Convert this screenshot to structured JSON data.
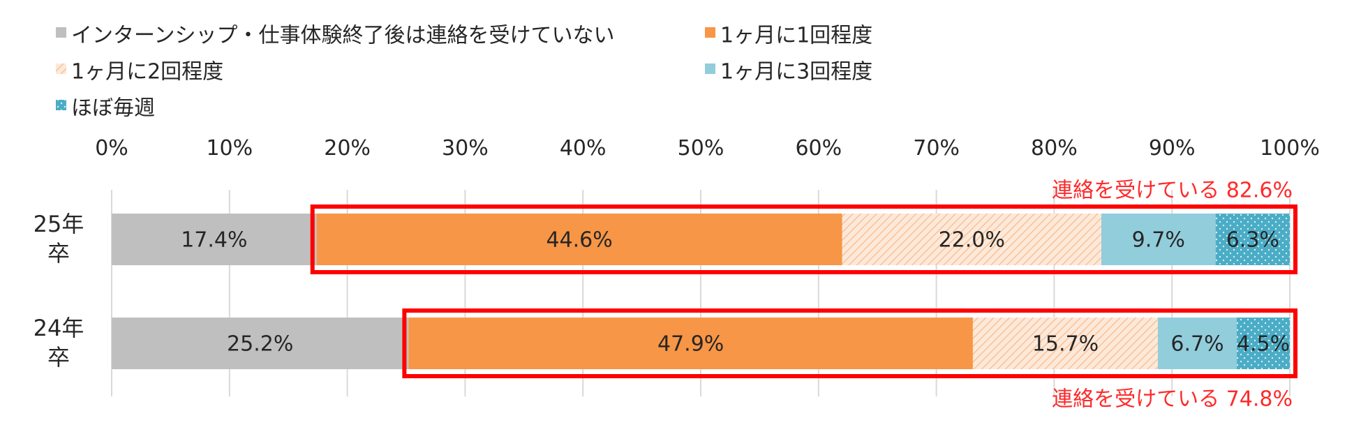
{
  "chart_data": {
    "type": "bar",
    "orientation": "horizontal",
    "stacked": true,
    "categories": [
      {
        "label_line1": "25年",
        "label_line2": "卒"
      },
      {
        "label_line1": "24年",
        "label_line2": "卒"
      }
    ],
    "series": [
      {
        "name": "インターンシップ・仕事体験終了後は連絡を受けていない",
        "color": "#bfbfbf",
        "pattern": "solid",
        "values": [
          17.4,
          25.2
        ]
      },
      {
        "name": "1ヶ月に1回程度",
        "color": "#f79646",
        "pattern": "solid",
        "values": [
          44.6,
          47.9
        ]
      },
      {
        "name": "1ヶ月に2回程度",
        "color": "#fbd4b4",
        "pattern": "diagonal-hatch",
        "values": [
          22.0,
          15.7
        ]
      },
      {
        "name": "1ヶ月に3回程度",
        "color": "#92cddc",
        "pattern": "solid",
        "values": [
          9.7,
          6.7
        ]
      },
      {
        "name": "ほぼ毎週",
        "color": "#4bacc6",
        "pattern": "dotted",
        "values": [
          6.3,
          4.5
        ]
      }
    ],
    "value_labels": [
      [
        "17.4%",
        "44.6%",
        "22.0%",
        "9.7%",
        "6.3%"
      ],
      [
        "25.2%",
        "47.9%",
        "15.7%",
        "6.7%",
        "4.5%"
      ]
    ],
    "x_axis": {
      "min": 0,
      "max": 100,
      "ticks": [
        "0%",
        "10%",
        "20%",
        "30%",
        "40%",
        "50%",
        "60%",
        "70%",
        "80%",
        "90%",
        "100%"
      ],
      "position": "top"
    },
    "grid": true,
    "legend_position": "top-left",
    "callouts": [
      {
        "category_index": 0,
        "text": "連絡を受けている",
        "value": "82.6%",
        "color": "#ff0000",
        "placement": "above"
      },
      {
        "category_index": 1,
        "text": "連絡を受けている",
        "value": "74.8%",
        "color": "#ff0000",
        "placement": "below"
      }
    ]
  }
}
